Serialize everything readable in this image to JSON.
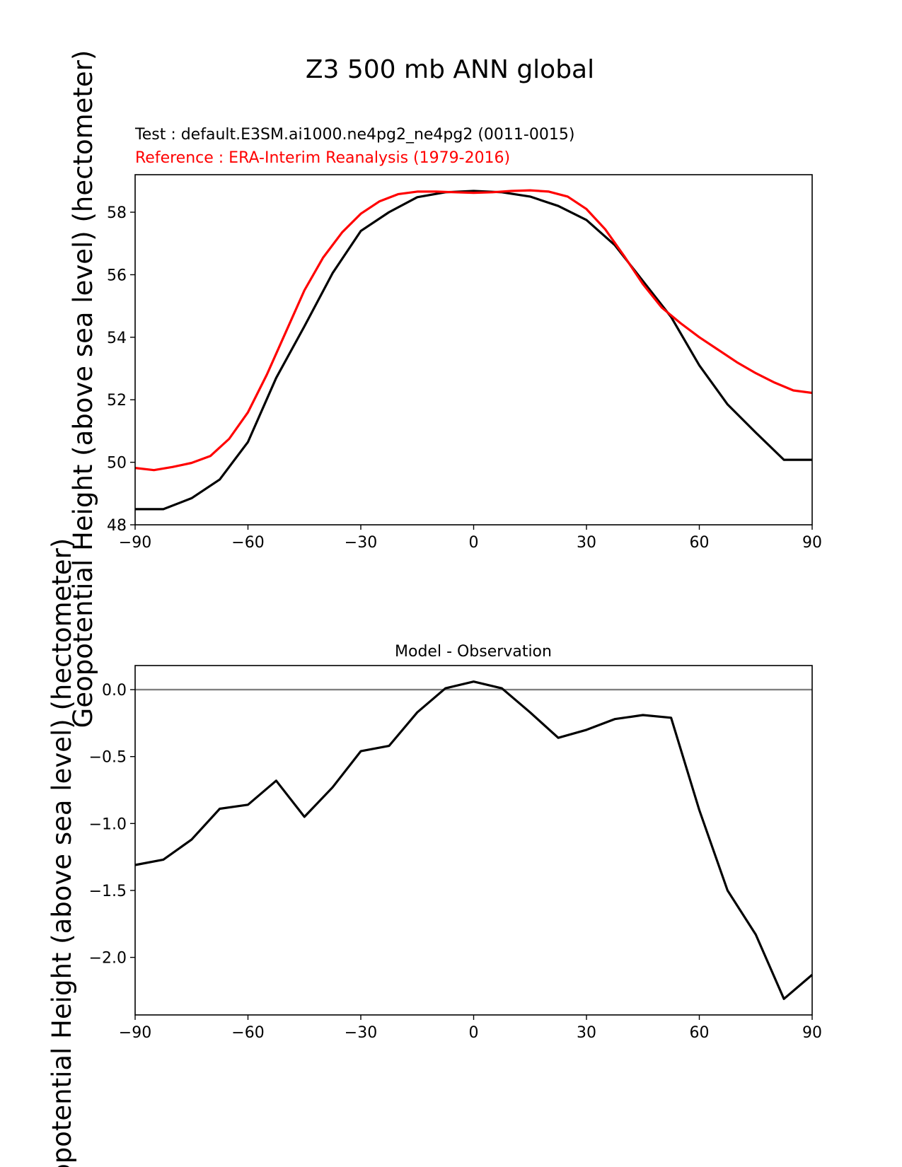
{
  "figure": {
    "suptitle": "Z3 500 mb ANN global",
    "test_label": "Test : default.E3SM.ai1000.ne4pg2_ne4pg2 (0011-0015)",
    "ref_label": "Reference : ERA-Interim Reanalysis (1979-2016)",
    "diff_title": "Model - Observation",
    "ylabel": "Geopotential Height (above sea level) (hectometer)"
  },
  "colors": {
    "test": "#000000",
    "reference": "#ff0000",
    "zero_line": "#808080"
  },
  "chart_data": [
    {
      "type": "line",
      "title": "",
      "xlabel": "",
      "ylabel": "Geopotential Height (above sea level) (hectometer)",
      "xlim": [
        -90,
        90
      ],
      "ylim": [
        48,
        59.2
      ],
      "xticks": [
        -90,
        -60,
        -30,
        0,
        30,
        60,
        90
      ],
      "xtick_labels": [
        "−90",
        "−60",
        "−30",
        "0",
        "30",
        "60",
        "90"
      ],
      "yticks": [
        48,
        50,
        52,
        54,
        56,
        58
      ],
      "ytick_labels": [
        "48",
        "50",
        "52",
        "54",
        "56",
        "58"
      ],
      "series": [
        {
          "name": "Test : default.E3SM.ai1000.ne4pg2_ne4pg2 (0011-0015)",
          "color": "#000000",
          "x": [
            -90,
            -82.5,
            -75,
            -67.5,
            -60,
            -52.5,
            -45,
            -37.5,
            -30,
            -22.5,
            -15,
            -7.5,
            0,
            7.5,
            15,
            22.5,
            30,
            37.5,
            45,
            52.5,
            60,
            67.5,
            75,
            82.5,
            90
          ],
          "y": [
            48.5,
            48.5,
            48.85,
            49.45,
            50.65,
            52.7,
            54.35,
            56.05,
            57.4,
            58.0,
            58.48,
            58.64,
            58.68,
            58.64,
            58.5,
            58.2,
            57.75,
            56.95,
            55.8,
            54.65,
            53.1,
            51.85,
            50.95,
            50.08,
            50.08
          ]
        },
        {
          "name": "Reference : ERA-Interim Reanalysis (1979-2016)",
          "color": "#ff0000",
          "x": [
            -90,
            -85,
            -80,
            -75,
            -70,
            -65,
            -60,
            -55,
            -50,
            -45,
            -40,
            -35,
            -30,
            -25,
            -20,
            -15,
            -10,
            -5,
            0,
            5,
            10,
            15,
            20,
            25,
            30,
            35,
            40,
            45,
            50,
            55,
            60,
            65,
            70,
            75,
            80,
            85,
            90
          ],
          "y": [
            49.82,
            49.75,
            49.85,
            49.98,
            50.2,
            50.75,
            51.6,
            52.8,
            54.15,
            55.5,
            56.55,
            57.35,
            57.95,
            58.35,
            58.58,
            58.66,
            58.66,
            58.64,
            58.62,
            58.64,
            58.68,
            58.7,
            58.66,
            58.5,
            58.1,
            57.45,
            56.6,
            55.7,
            54.95,
            54.45,
            54.0,
            53.6,
            53.2,
            52.85,
            52.55,
            52.3,
            52.22
          ]
        }
      ]
    },
    {
      "type": "line",
      "title": "Model - Observation",
      "xlabel": "",
      "ylabel": "Geopotential Height (above sea level) (hectometer)",
      "xlim": [
        -90,
        90
      ],
      "ylim": [
        -2.43,
        0.18
      ],
      "xticks": [
        -90,
        -60,
        -30,
        0,
        30,
        60,
        90
      ],
      "xtick_labels": [
        "−90",
        "−60",
        "−30",
        "0",
        "30",
        "60",
        "90"
      ],
      "yticks": [
        0.0,
        -0.5,
        -1.0,
        -1.5,
        -2.0
      ],
      "ytick_labels": [
        "0.0",
        "−0.5",
        "−1.0",
        "−1.5",
        "−2.0"
      ],
      "zero_line": 0.0,
      "series": [
        {
          "name": "Model - Observation",
          "color": "#000000",
          "x": [
            -90,
            -82.5,
            -75,
            -67.5,
            -60,
            -52.5,
            -45,
            -37.5,
            -30,
            -22.5,
            -15,
            -7.5,
            0,
            7.5,
            15,
            22.5,
            30,
            37.5,
            45,
            52.5,
            60,
            67.5,
            75,
            82.5,
            90
          ],
          "y": [
            -1.31,
            -1.27,
            -1.12,
            -0.89,
            -0.86,
            -0.68,
            -0.95,
            -0.73,
            -0.46,
            -0.42,
            -0.17,
            0.01,
            0.06,
            0.01,
            -0.17,
            -0.36,
            -0.3,
            -0.22,
            -0.19,
            -0.21,
            -0.9,
            -1.5,
            -1.83,
            -2.31,
            -2.13
          ]
        }
      ]
    }
  ]
}
